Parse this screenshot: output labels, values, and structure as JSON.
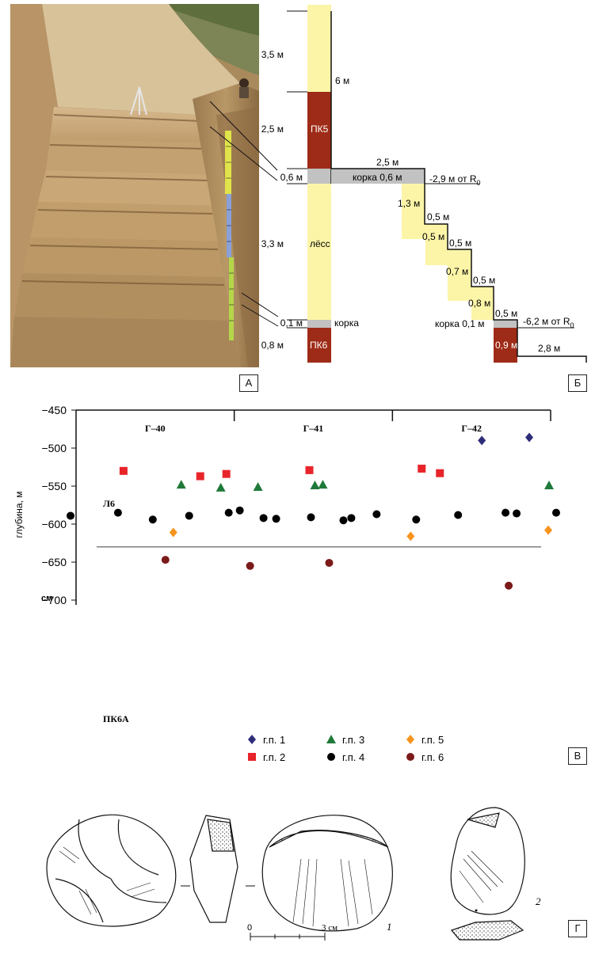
{
  "panel_labels": {
    "a": "А",
    "b": "Б",
    "v": "В",
    "g": "Г"
  },
  "photo": {
    "description_icon": "excavation-photo"
  },
  "column": {
    "segments": [
      {
        "thickness": "3,5 м"
      },
      {
        "thickness": "2,5 м",
        "name": "ПК5"
      },
      {
        "thickness": "0,6 м"
      },
      {
        "thickness": "3,3 м",
        "name": "лёсс"
      },
      {
        "thickness": "0,1 м",
        "name": "корка"
      },
      {
        "thickness": "0,8 м",
        "name": "ПК6"
      }
    ],
    "total_label": "6 м",
    "step_labels": {
      "width_top": "2,5 м",
      "crust_top": "корка 0,6 м",
      "level_top": "-2,9 м от R",
      "level_top_sub": "0",
      "s1": "1,3 м",
      "s2a": "0,5 м",
      "s2b": "0,5 м",
      "s3a": "0,5 м",
      "s3b": "0,7 м",
      "s4a": "0,5 м",
      "s4b": "0,8 м",
      "s5": "0,5 м",
      "crust_bottom": "корка 0,1 м",
      "level_bottom": "-6,2 м от R",
      "level_bottom_sub": "0",
      "pk6_thick": "0,9 м",
      "pk6_width": "2,8 м"
    }
  },
  "chart_data": {
    "type": "scatter",
    "ylabel": "глубина, м",
    "yunit": "см",
    "ylim": [
      -700,
      -450
    ],
    "yticks": [
      -450,
      -500,
      -550,
      -600,
      -650,
      -700
    ],
    "sections": [
      "Г–40",
      "Г–41",
      "Г–42"
    ],
    "boundary_depth": -630,
    "layer_labels": {
      "upper": "Л6",
      "lower": "ПК6А"
    },
    "series": [
      {
        "name": "г.п. 1",
        "color": "#2d2d7a",
        "marker": "diamond",
        "points": [
          [
            5.13,
            -490
          ],
          [
            5.73,
            -486
          ]
        ]
      },
      {
        "name": "г.п. 2",
        "color": "#e8242a",
        "marker": "square",
        "points": [
          [
            0.6,
            -530
          ],
          [
            1.57,
            -537
          ],
          [
            1.9,
            -534
          ],
          [
            2.95,
            -529
          ],
          [
            4.37,
            -527
          ],
          [
            4.6,
            -533
          ]
        ]
      },
      {
        "name": "г.п. 3",
        "color": "#1f7a3a",
        "marker": "triangle",
        "points": [
          [
            1.33,
            -548
          ],
          [
            1.83,
            -552
          ],
          [
            2.3,
            -551
          ],
          [
            3.02,
            -549
          ],
          [
            3.12,
            -548
          ],
          [
            5.98,
            -549
          ]
        ]
      },
      {
        "name": "г.п. 4",
        "color": "#000000",
        "marker": "circle",
        "points": [
          [
            -0.07,
            -589
          ],
          [
            0.53,
            -585
          ],
          [
            0.97,
            -594
          ],
          [
            1.43,
            -589
          ],
          [
            1.93,
            -585
          ],
          [
            2.07,
            -582
          ],
          [
            2.37,
            -592
          ],
          [
            2.53,
            -593
          ],
          [
            2.97,
            -591
          ],
          [
            3.38,
            -595
          ],
          [
            3.48,
            -592
          ],
          [
            3.8,
            -587
          ],
          [
            4.3,
            -594
          ],
          [
            4.83,
            -588
          ],
          [
            5.43,
            -585
          ],
          [
            5.57,
            -586
          ],
          [
            6.07,
            -585
          ]
        ]
      },
      {
        "name": "г.п. 5",
        "color": "#f7941d",
        "marker": "diamond",
        "points": [
          [
            1.23,
            -611
          ],
          [
            4.23,
            -616
          ],
          [
            5.97,
            -608
          ]
        ]
      },
      {
        "name": "г.п. 6",
        "color": "#7b1a1a",
        "marker": "circle",
        "points": [
          [
            1.13,
            -647
          ],
          [
            2.2,
            -655
          ],
          [
            3.2,
            -651
          ],
          [
            5.47,
            -681
          ]
        ]
      }
    ]
  },
  "drawings": {
    "scale_zero": "0",
    "scale_end": "3 см",
    "fig1": "1",
    "fig2": "2"
  }
}
